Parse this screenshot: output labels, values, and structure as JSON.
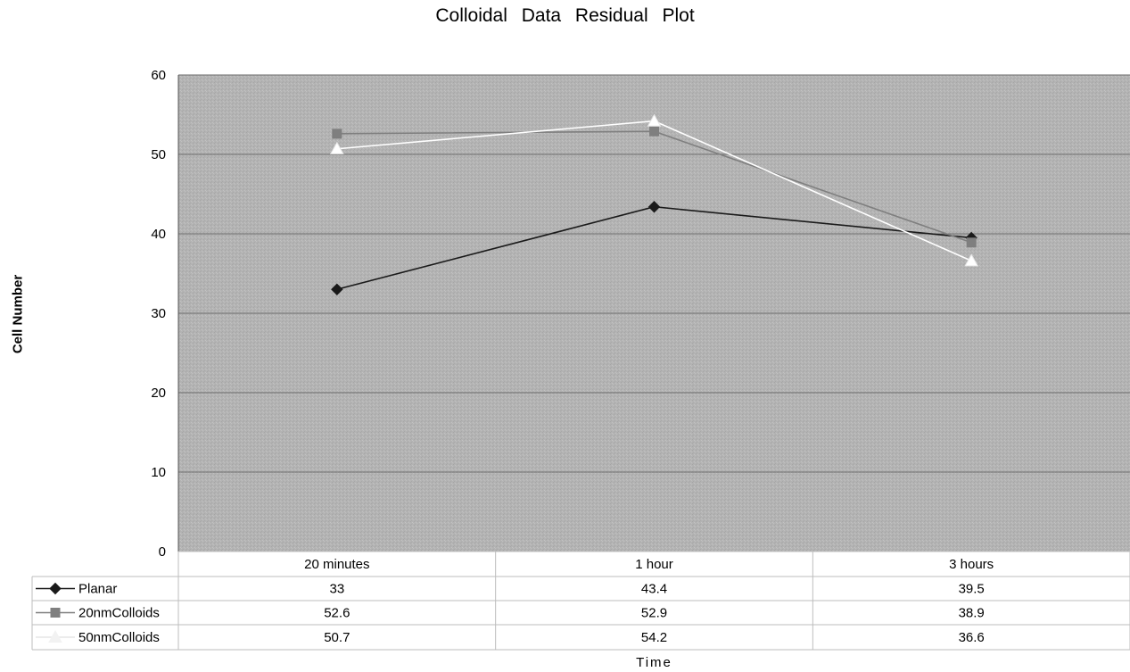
{
  "chart_data": {
    "type": "line",
    "title": "Colloidal Data Residual Plot",
    "xlabel": "Time",
    "ylabel": "Cell Number",
    "categories": [
      "20 minutes",
      "1 hour",
      "3 hours"
    ],
    "ylim": [
      0,
      60
    ],
    "yticks": [
      0,
      10,
      20,
      30,
      40,
      50,
      60
    ],
    "grid": true,
    "legend": "data-table",
    "series": [
      {
        "name": "Planar",
        "values": [
          33,
          43.4,
          39.5
        ],
        "color": "#1a1a1a",
        "marker": "diamond"
      },
      {
        "name": "20nmColloids",
        "values": [
          52.6,
          52.9,
          38.9
        ],
        "color": "#7f7f7f",
        "marker": "square"
      },
      {
        "name": "50nmColloids",
        "values": [
          50.7,
          54.2,
          36.6
        ],
        "color": "#ffffff",
        "marker": "triangle"
      }
    ],
    "table_values": [
      [
        "33",
        "43.4",
        "39.5"
      ],
      [
        "52.6",
        "52.9",
        "38.9"
      ],
      [
        "50.7",
        "54.2",
        "36.6"
      ]
    ],
    "plot_background": "#b4b4b4"
  }
}
